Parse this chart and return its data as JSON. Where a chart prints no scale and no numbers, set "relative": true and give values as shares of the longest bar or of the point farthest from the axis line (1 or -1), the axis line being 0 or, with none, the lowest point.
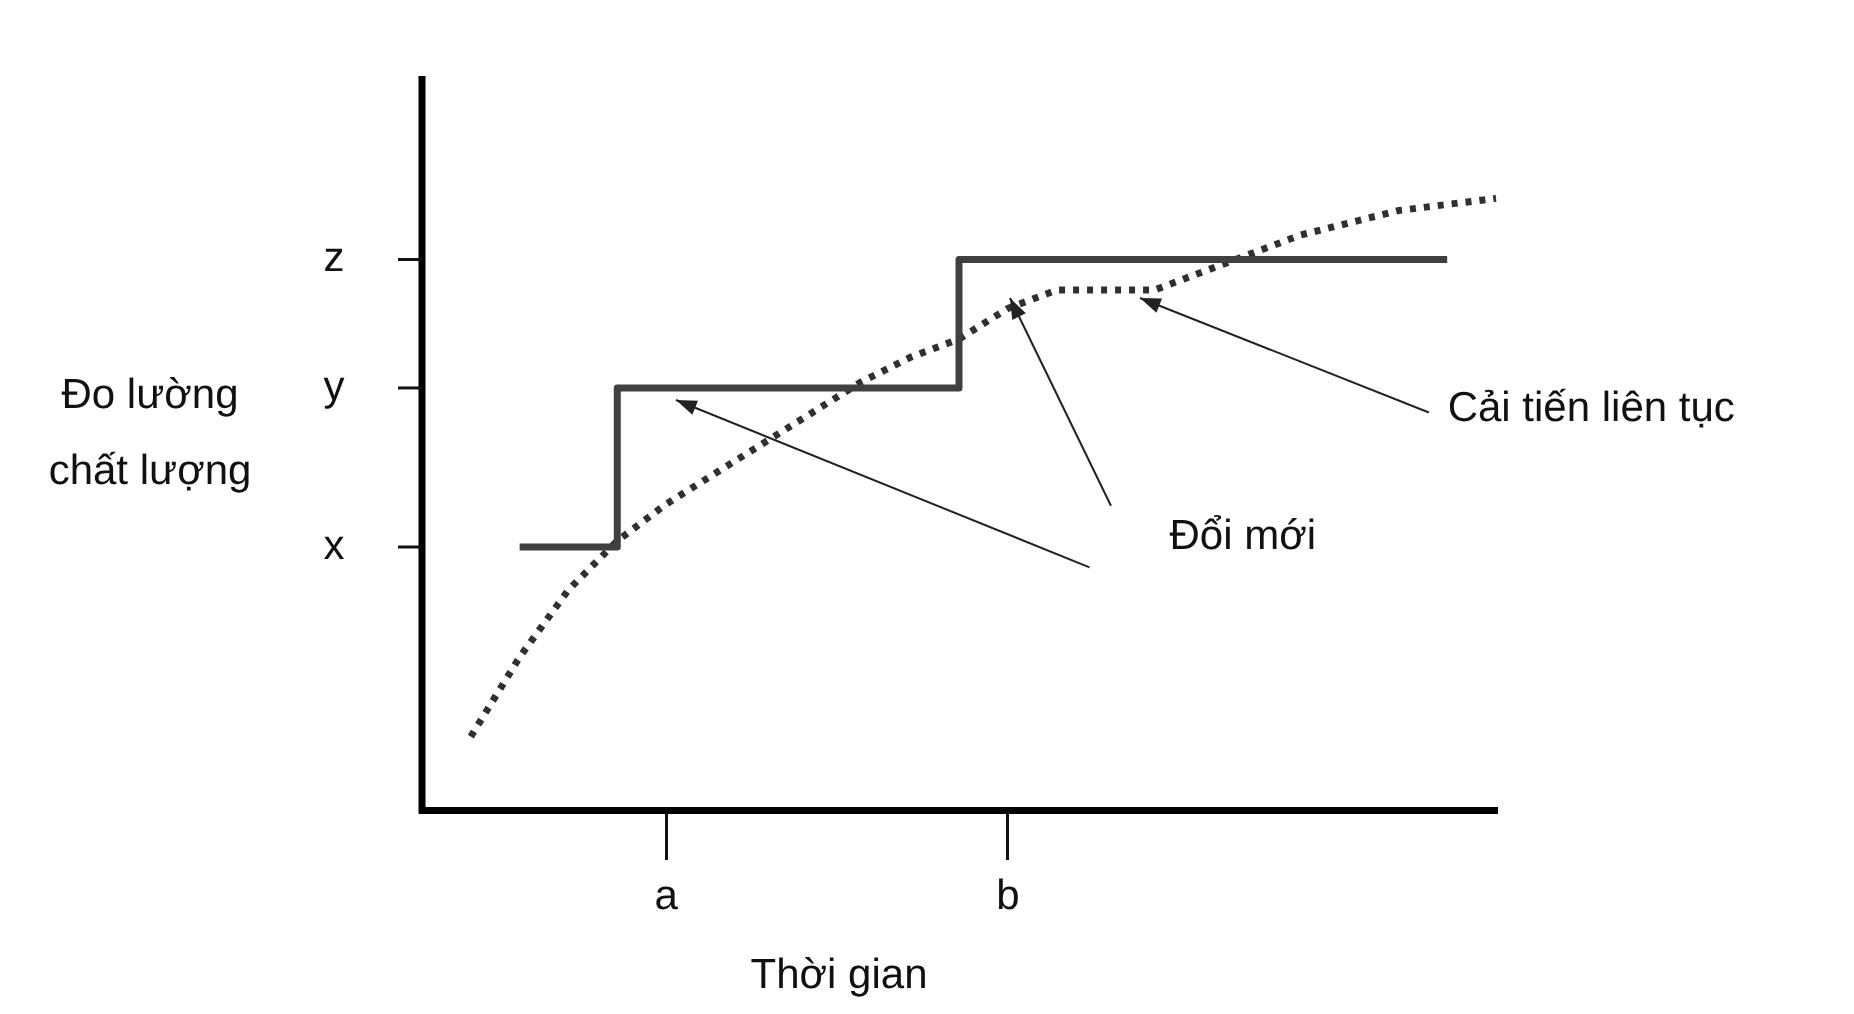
{
  "chart_data": {
    "type": "line",
    "xlabel": "Thời gian",
    "ylabel": "Đo lường\nchất lượng",
    "relative": true,
    "categories": [
      null,
      null,
      null,
      null,
      null,
      "a",
      null,
      null,
      null,
      null,
      null,
      null,
      "b",
      null,
      null,
      null,
      null,
      null,
      null,
      null,
      null,
      null,
      null
    ],
    "grid": false,
    "legend": false,
    "marker": "none",
    "series": [
      {
        "type": "step",
        "color": "#404040",
        "line_style": "solid",
        "values": [
          null,
          null,
          0.43,
          0.43,
          0.43,
          0.69,
          0.69,
          0.69,
          0.69,
          0.69,
          0.69,
          0.69,
          0.9,
          0.9,
          0.9,
          0.9,
          0.9,
          0.9,
          0.9,
          0.9,
          0.9,
          0.9,
          null
        ]
      },
      {
        "type": "line",
        "color": "#303030",
        "line_style": "dotted",
        "values": [
          null,
          0.12,
          0.25,
          0.36,
          0.44,
          0.5,
          0.55,
          0.6,
          0.65,
          0.7,
          0.74,
          0.77,
          0.82,
          0.85,
          0.85,
          0.85,
          0.88,
          0.91,
          0.94,
          0.96,
          0.98,
          0.99,
          1
        ]
      }
    ],
    "annotations": [
      "x",
      "y",
      "z",
      "Đổi mới",
      "Cải tiến liên tục"
    ]
  }
}
